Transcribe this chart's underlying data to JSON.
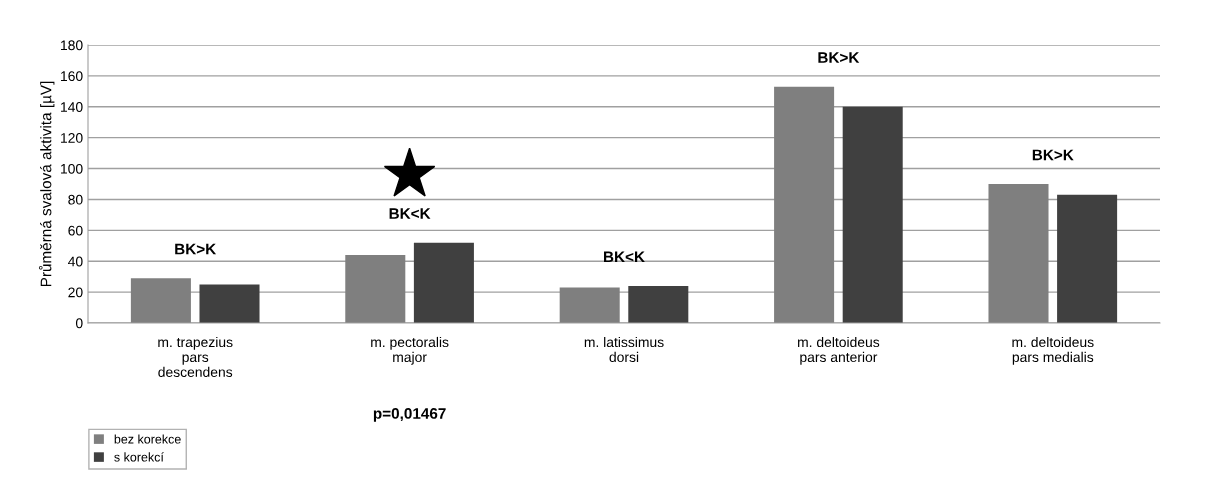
{
  "chart_data": {
    "type": "bar",
    "ylabel": "Průměrná svalová aktivita [µV]",
    "categories": [
      "m. trapezius\npars\ndescendens",
      "m. pectoralis\nmajor",
      "m. latissimus\ndorsi",
      "m. deltoideus\npars anterior",
      "m. deltoideus\npars medialis"
    ],
    "series": [
      {
        "name": "bez korekce",
        "color": "#7f7f7f",
        "values": [
          29,
          44,
          23,
          153,
          90
        ]
      },
      {
        "name": "s korekcí",
        "color": "#404040",
        "values": [
          25,
          52,
          24,
          140,
          83
        ]
      }
    ],
    "ylim": [
      0,
      180
    ],
    "yticks": [
      0,
      20,
      40,
      60,
      80,
      100,
      120,
      140,
      160,
      180
    ],
    "grid": "y",
    "legend": "bottom left",
    "annotations": [
      "BK>K",
      "BK<K",
      "BK<K",
      "BK>K",
      "BK>K",
      "p=0,01467"
    ]
  }
}
